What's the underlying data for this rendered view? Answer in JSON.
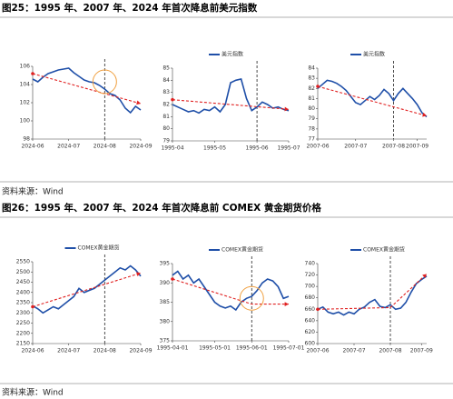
{
  "figures": [
    {
      "title": "图25：1995 年、2007 年、2024 年首次降息前美元指数",
      "source": "资料来源：Wind"
    },
    {
      "title": "图26：1995 年、2007 年、2024 年首次降息前 COMEX 黄金期货价格",
      "source": "资料来源：Wind"
    }
  ],
  "chart_data": [
    {
      "type": "line",
      "categories": [
        "2024-06",
        null,
        null,
        null,
        null,
        null,
        null,
        "2024-07",
        null,
        null,
        null,
        null,
        null,
        null,
        "2024-08",
        null,
        null,
        null,
        null,
        null,
        null,
        "2024-09"
      ],
      "series": [
        {
          "color": "#1f4fa8",
          "values": [
            104.6,
            104.3,
            104.8,
            105.2,
            105.4,
            105.6,
            105.7,
            105.8,
            105.3,
            104.9,
            104.5,
            104.3,
            104.2,
            103.9,
            103.5,
            103.0,
            102.8,
            102.3,
            101.4,
            100.9,
            101.6,
            101.2
          ]
        }
      ],
      "ylim": [
        98,
        106
      ],
      "yticks": [
        98,
        100,
        102,
        104,
        106
      ],
      "cut": 14,
      "trend": {
        "color": "#e02020",
        "points": [
          [
            0,
            105.2
          ],
          [
            21,
            101.9
          ]
        ]
      },
      "highlight": {
        "color": "#f0a040",
        "point": [
          14,
          104.3
        ]
      }
    },
    {
      "type": "line",
      "categories": [
        "1995-04",
        null,
        null,
        null,
        null,
        null,
        null,
        null,
        "1995-05",
        null,
        null,
        null,
        null,
        null,
        null,
        null,
        "1995-06",
        null,
        null,
        null,
        null,
        null,
        "1995-07"
      ],
      "series": [
        {
          "name": "美元指数",
          "color": "#1f4fa8",
          "values": [
            82.0,
            81.8,
            81.6,
            81.4,
            81.5,
            81.3,
            81.6,
            81.5,
            81.8,
            81.4,
            82.0,
            83.8,
            84.0,
            84.1,
            82.5,
            81.5,
            81.8,
            82.2,
            82.0,
            81.7,
            81.8,
            81.6,
            81.5
          ]
        }
      ],
      "ylim": [
        79,
        85
      ],
      "yticks": [
        79,
        80,
        81,
        82,
        83,
        84,
        85
      ],
      "cut": 16,
      "trend": {
        "color": "#e02020",
        "points": [
          [
            0,
            82.4
          ],
          [
            22,
            81.6
          ]
        ]
      }
    },
    {
      "type": "line",
      "categories": [
        "2007-06",
        null,
        null,
        null,
        null,
        null,
        null,
        null,
        "2007-07",
        null,
        null,
        null,
        null,
        null,
        null,
        null,
        "2007-08",
        null,
        null,
        null,
        null,
        "2007-09",
        null,
        null
      ],
      "series": [
        {
          "name": "美元指数",
          "color": "#1f4fa8",
          "values": [
            82.0,
            82.4,
            82.8,
            82.7,
            82.5,
            82.2,
            81.8,
            81.2,
            80.6,
            80.4,
            80.8,
            81.2,
            80.9,
            81.3,
            81.9,
            81.5,
            80.8,
            81.5,
            82.0,
            81.5,
            81.0,
            80.4,
            79.6,
            79.2
          ]
        }
      ],
      "ylim": [
        77,
        84
      ],
      "yticks": [
        77,
        78,
        79,
        80,
        81,
        82,
        83,
        84
      ],
      "cut": 16,
      "trend": {
        "color": "#e02020",
        "points": [
          [
            0,
            82.2
          ],
          [
            23,
            79.3
          ]
        ]
      }
    },
    {
      "type": "line",
      "categories": [
        "2024-06",
        null,
        null,
        null,
        null,
        null,
        null,
        "2024-07",
        null,
        null,
        null,
        null,
        null,
        null,
        "2024-08",
        null,
        null,
        null,
        null,
        null,
        null,
        "2024-09"
      ],
      "series": [
        {
          "name": "COMEX黄金期货",
          "color": "#1f4fa8",
          "values": [
            2335,
            2320,
            2300,
            2315,
            2330,
            2320,
            2340,
            2360,
            2380,
            2420,
            2400,
            2410,
            2420,
            2440,
            2460,
            2480,
            2500,
            2520,
            2510,
            2530,
            2510,
            2480
          ]
        }
      ],
      "ylim": [
        2150,
        2550
      ],
      "yticks": [
        2150,
        2200,
        2250,
        2300,
        2350,
        2400,
        2450,
        2500,
        2550
      ],
      "cut": 14,
      "trend": {
        "color": "#e02020",
        "points": [
          [
            0,
            2330
          ],
          [
            21,
            2495
          ]
        ]
      }
    },
    {
      "type": "line",
      "categories": [
        "1995-04-01",
        null,
        null,
        null,
        null,
        null,
        null,
        null,
        "1995-05-01",
        null,
        null,
        null,
        null,
        null,
        null,
        "1995-06-01",
        null,
        null,
        null,
        null,
        null,
        null,
        "1995-07-01"
      ],
      "series": [
        {
          "name": "COMEX黄金期货",
          "color": "#1f4fa8",
          "values": [
            392,
            393,
            391,
            392,
            390,
            391,
            389,
            387,
            385,
            384,
            383.5,
            384,
            383,
            385,
            386,
            386.5,
            388,
            390,
            391,
            390.5,
            389,
            386,
            386.5
          ]
        }
      ],
      "ylim": [
        375,
        395
      ],
      "yticks": [
        375,
        380,
        385,
        390,
        395
      ],
      "cut": 15,
      "trend": {
        "color": "#e02020",
        "points": [
          [
            0,
            391
          ],
          [
            15,
            384.5
          ],
          [
            22,
            384.5
          ]
        ]
      },
      "highlight": {
        "color": "#f0a040",
        "point": [
          15,
          386
        ]
      }
    },
    {
      "type": "line",
      "categories": [
        "2007-06",
        null,
        null,
        null,
        null,
        null,
        null,
        "2007-07",
        null,
        null,
        null,
        null,
        null,
        null,
        "2007-08",
        null,
        null,
        null,
        null,
        null,
        "2007-09",
        null
      ],
      "series": [
        {
          "name": "COMEX黄金期货",
          "color": "#1f4fa8",
          "values": [
            660,
            664,
            655,
            652,
            655,
            650,
            655,
            652,
            660,
            664,
            672,
            677,
            665,
            663,
            668,
            660,
            662,
            672,
            690,
            705,
            712,
            718
          ]
        }
      ],
      "ylim": [
        600,
        740
      ],
      "yticks": [
        600,
        620,
        640,
        660,
        680,
        700,
        720,
        740
      ],
      "cut": 14,
      "trend": {
        "color": "#e02020",
        "points": [
          [
            0,
            660
          ],
          [
            14,
            663
          ],
          [
            21,
            722
          ]
        ]
      }
    }
  ]
}
